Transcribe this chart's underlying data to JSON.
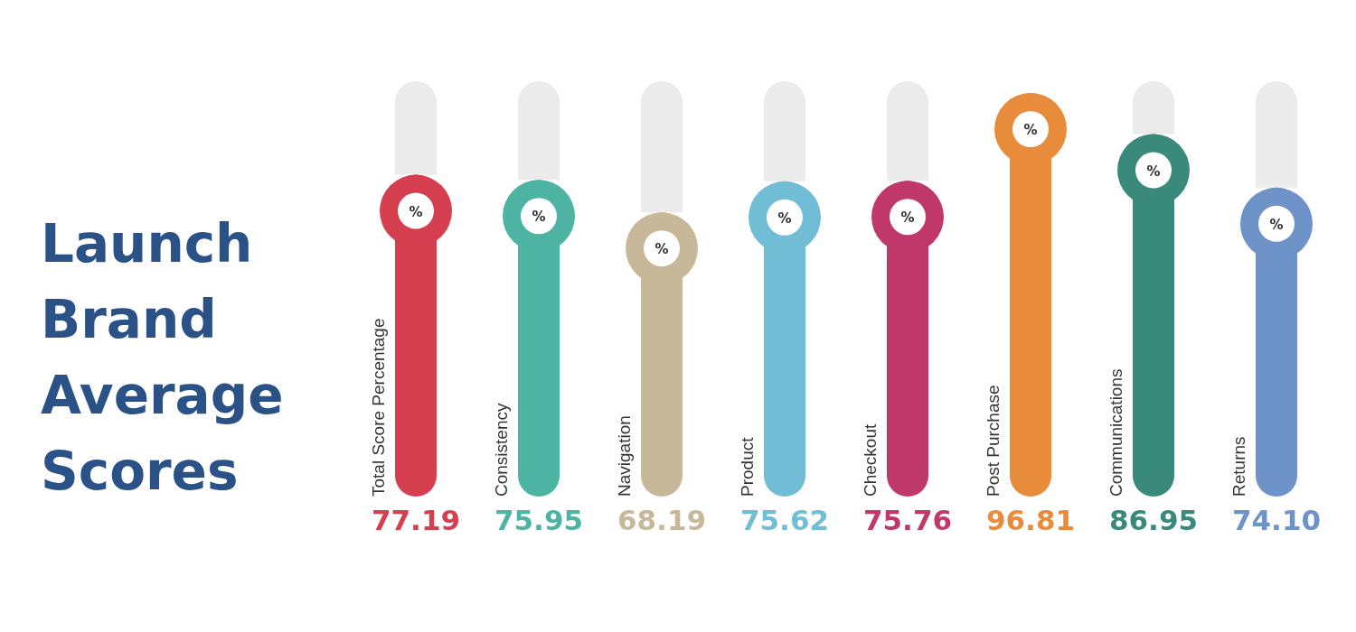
{
  "chart_data": {
    "type": "bar",
    "title": "Launch Brand Average Scores",
    "categories": [
      "Total Score Percentage",
      "Consistency",
      "Navigation",
      "Product",
      "Checkout",
      "Post Purchase",
      "Communications",
      "Returns"
    ],
    "values": [
      77.19,
      75.95,
      68.19,
      75.62,
      75.76,
      96.81,
      86.95,
      74.1
    ],
    "value_labels": [
      "77.19",
      "75.95",
      "68.19",
      "75.62",
      "75.76",
      "96.81",
      "86.95",
      "74.10"
    ],
    "colors": [
      "#d63f50",
      "#4db3a3",
      "#c8b89a",
      "#72bdd6",
      "#c0386a",
      "#e88b3b",
      "#3a8a7b",
      "#6e93c9"
    ],
    "annotations": [
      "%"
    ]
  }
}
